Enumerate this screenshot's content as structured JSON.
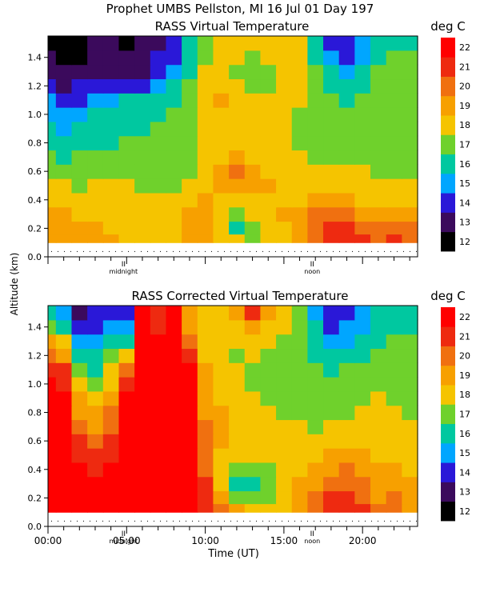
{
  "figure": {
    "title": "Prophet  UMBS Pellston, MI  16 Jul 01 Day 197",
    "shared_ylabel": "Altitude (km)",
    "shared_xlabel": "Time (UT)",
    "x_ticklabels": [
      "00:00",
      "05:00",
      "10:00",
      "15:00",
      "20:00"
    ],
    "marker_labels": [
      "midnight",
      "noon"
    ],
    "marker_glyph": "II"
  },
  "colorbar": {
    "unit_label": "deg C",
    "levels": [
      12,
      13,
      14,
      15,
      16,
      17,
      18,
      19,
      20,
      21,
      22
    ],
    "colors": [
      "#000000",
      "#3b0a5c",
      "#2a18d8",
      "#00a6ff",
      "#00c8a0",
      "#6fd12c",
      "#f5c400",
      "#f7a000",
      "#f07010",
      "#ee2a10",
      "#ff0000"
    ]
  },
  "chart_data": [
    {
      "type": "heatmap",
      "title": "RASS Virtual Temperature",
      "xlabel": "Time (UT)",
      "ylabel": "Altitude (km)",
      "zlabel": "deg C",
      "xlim": [
        0,
        23.5
      ],
      "ylim": [
        0,
        1.55
      ],
      "yticks": [
        0.0,
        0.2,
        0.4,
        0.6,
        0.8,
        1.0,
        1.2,
        1.4
      ],
      "yticklabels": [
        "0.0",
        "0.2",
        "0.4",
        "0.6",
        "0.8",
        "1.0",
        "1.2",
        "1.4"
      ],
      "markers": [
        {
          "x": 4.8,
          "label": "midnight"
        },
        {
          "x": 16.8,
          "label": "noon"
        }
      ],
      "x_hours": [
        0,
        1,
        2,
        3,
        4,
        5,
        6,
        7,
        8,
        9,
        10,
        11,
        12,
        13,
        14,
        15,
        16,
        17,
        18,
        19,
        20,
        21,
        22,
        23
      ],
      "y_km": [
        0.12,
        0.2,
        0.3,
        0.4,
        0.5,
        0.6,
        0.7,
        0.8,
        0.9,
        1.0,
        1.1,
        1.2,
        1.3,
        1.4,
        1.5
      ],
      "values": [
        [
          19.5,
          19.8,
          19.3,
          19.5,
          19.2,
          18.8,
          18.6,
          18.5,
          18.8,
          19.4,
          19.2,
          18.7,
          18.5,
          17.6,
          18.3,
          18.8,
          19.6,
          20.6,
          21.3,
          21.5,
          21.2,
          20.8,
          21.0,
          20.5
        ],
        [
          19.3,
          19.6,
          19.2,
          19.1,
          18.9,
          18.6,
          18.6,
          18.5,
          18.6,
          19.3,
          19.1,
          18.4,
          16.8,
          17.8,
          18.4,
          18.9,
          19.4,
          20.4,
          21.0,
          21.3,
          20.8,
          20.1,
          20.6,
          20.1
        ],
        [
          19.0,
          19.2,
          18.7,
          18.4,
          18.4,
          18.4,
          18.2,
          18.1,
          18.5,
          19.1,
          19.2,
          18.3,
          17.6,
          18.3,
          18.8,
          19.2,
          19.4,
          20.0,
          20.6,
          20.6,
          19.7,
          19.1,
          19.6,
          19.1
        ],
        [
          18.2,
          18.4,
          18.1,
          18.2,
          18.1,
          18.2,
          18.2,
          18.0,
          18.0,
          18.4,
          19.1,
          18.8,
          18.6,
          18.9,
          18.9,
          18.8,
          18.8,
          19.1,
          19.4,
          19.1,
          18.8,
          18.3,
          18.9,
          18.5
        ],
        [
          18.1,
          18.1,
          17.9,
          18.1,
          18.0,
          18.0,
          17.8,
          17.7,
          17.8,
          18.1,
          18.6,
          19.0,
          19.3,
          19.4,
          19.1,
          18.6,
          18.5,
          18.5,
          18.7,
          18.5,
          18.4,
          18.1,
          18.4,
          18.1
        ],
        [
          17.7,
          17.4,
          17.6,
          17.8,
          17.8,
          17.6,
          17.5,
          17.5,
          17.6,
          17.9,
          18.6,
          19.6,
          20.2,
          19.2,
          18.7,
          18.5,
          18.4,
          18.3,
          18.1,
          18.1,
          18.0,
          17.8,
          17.8,
          17.8
        ],
        [
          17.3,
          16.9,
          17.1,
          17.2,
          17.2,
          17.2,
          17.2,
          17.3,
          17.4,
          17.8,
          18.3,
          18.8,
          19.3,
          18.9,
          18.6,
          18.5,
          18.1,
          17.8,
          17.8,
          17.7,
          17.6,
          17.6,
          17.6,
          17.6
        ],
        [
          16.8,
          16.3,
          16.6,
          16.8,
          16.9,
          17.0,
          17.1,
          17.2,
          17.4,
          17.6,
          18.1,
          18.7,
          18.8,
          18.6,
          18.5,
          18.4,
          17.7,
          17.5,
          17.4,
          17.4,
          17.3,
          17.4,
          17.3,
          17.3
        ],
        [
          16.4,
          15.7,
          16.1,
          16.5,
          16.7,
          16.8,
          16.9,
          17.1,
          17.3,
          17.5,
          18.1,
          18.7,
          18.8,
          18.6,
          18.4,
          18.2,
          17.5,
          17.2,
          17.0,
          17.1,
          17.2,
          17.4,
          17.3,
          17.3
        ],
        [
          15.8,
          15.0,
          15.5,
          16.2,
          16.5,
          16.6,
          16.6,
          16.8,
          17.1,
          17.7,
          18.4,
          18.8,
          18.5,
          18.4,
          18.2,
          18.2,
          17.6,
          17.2,
          17.0,
          17.0,
          17.1,
          17.4,
          17.4,
          17.4
        ],
        [
          15.0,
          14.3,
          14.9,
          15.7,
          15.9,
          16.0,
          16.1,
          16.5,
          16.9,
          17.6,
          18.6,
          19.1,
          18.4,
          18.1,
          18.0,
          18.2,
          18.1,
          17.3,
          17.0,
          16.8,
          17.0,
          17.6,
          17.6,
          17.6
        ],
        [
          14.3,
          13.7,
          14.0,
          14.6,
          14.3,
          14.4,
          14.8,
          15.4,
          16.1,
          17.1,
          18.4,
          18.7,
          18.3,
          17.9,
          17.9,
          18.2,
          18.5,
          17.4,
          16.6,
          16.1,
          16.6,
          17.4,
          17.5,
          17.6
        ],
        [
          13.6,
          13.1,
          13.3,
          13.6,
          13.4,
          13.5,
          13.9,
          14.5,
          15.3,
          16.6,
          18.1,
          18.3,
          17.9,
          17.8,
          17.9,
          18.2,
          18.5,
          17.2,
          16.2,
          15.6,
          16.2,
          17.1,
          17.2,
          17.4
        ],
        [
          13.0,
          12.5,
          12.9,
          13.3,
          13.1,
          13.2,
          13.4,
          14.1,
          14.8,
          16.2,
          17.9,
          18.4,
          18.0,
          17.9,
          18.1,
          18.4,
          18.3,
          16.6,
          15.2,
          14.8,
          15.6,
          16.8,
          17.0,
          17.2
        ],
        [
          12.8,
          12.2,
          12.5,
          13.4,
          13.3,
          12.9,
          13.2,
          13.9,
          14.5,
          16.0,
          17.8,
          18.5,
          18.1,
          18.0,
          18.1,
          18.3,
          18.0,
          16.4,
          14.9,
          14.6,
          15.4,
          16.5,
          16.7,
          16.8
        ]
      ]
    },
    {
      "type": "heatmap",
      "title": "RASS Corrected Virtual Temperature",
      "xlabel": "Time (UT)",
      "ylabel": "Altitude (km)",
      "zlabel": "deg C",
      "xlim": [
        0,
        23.5
      ],
      "ylim": [
        0,
        1.55
      ],
      "yticks": [
        0.0,
        0.2,
        0.4,
        0.6,
        0.8,
        1.0,
        1.2,
        1.4
      ],
      "yticklabels": [
        "0.0",
        "0.2",
        "0.4",
        "0.6",
        "0.8",
        "1.0",
        "1.2",
        "1.4"
      ],
      "markers": [
        {
          "x": 4.8,
          "label": "midnight"
        },
        {
          "x": 16.8,
          "label": "noon"
        }
      ],
      "x_hours": [
        0,
        1,
        2,
        3,
        4,
        5,
        6,
        7,
        8,
        9,
        10,
        11,
        12,
        13,
        14,
        15,
        16,
        17,
        18,
        19,
        20,
        21,
        22,
        23
      ],
      "y_km": [
        0.12,
        0.2,
        0.3,
        0.4,
        0.5,
        0.6,
        0.7,
        0.8,
        0.9,
        1.0,
        1.1,
        1.2,
        1.3,
        1.4,
        1.5
      ],
      "values": [
        [
          23.0,
          23.0,
          23.0,
          22.5,
          23.0,
          23.0,
          23.0,
          23.0,
          23.0,
          23.0,
          21.4,
          20.2,
          19.6,
          18.5,
          18.7,
          18.9,
          19.4,
          20.3,
          21.4,
          21.8,
          21.0,
          20.2,
          20.2,
          19.8
        ],
        [
          23.0,
          23.0,
          23.0,
          22.5,
          23.0,
          23.0,
          23.0,
          23.0,
          23.0,
          23.0,
          21.2,
          19.7,
          17.5,
          17.0,
          17.8,
          18.8,
          19.2,
          20.0,
          21.0,
          21.2,
          20.7,
          19.9,
          20.0,
          19.6
        ],
        [
          23.0,
          23.0,
          22.8,
          22.2,
          22.8,
          23.0,
          23.0,
          23.0,
          23.0,
          23.0,
          21.0,
          18.8,
          16.8,
          16.8,
          17.6,
          18.6,
          19.0,
          19.6,
          20.5,
          20.8,
          20.2,
          19.6,
          19.5,
          19.3
        ],
        [
          23.0,
          23.0,
          22.5,
          21.8,
          22.4,
          23.0,
          23.0,
          23.0,
          23.0,
          23.0,
          20.8,
          18.3,
          17.1,
          17.3,
          17.9,
          18.5,
          18.6,
          19.2,
          19.8,
          20.0,
          19.6,
          19.1,
          19.0,
          18.9
        ],
        [
          23.0,
          22.8,
          21.9,
          21.1,
          21.8,
          23.0,
          23.0,
          23.0,
          23.0,
          23.0,
          20.6,
          18.6,
          18.0,
          18.2,
          18.4,
          18.5,
          18.5,
          18.7,
          19.0,
          19.1,
          19.0,
          18.7,
          18.6,
          18.5
        ],
        [
          23.0,
          22.6,
          21.2,
          20.4,
          21.2,
          23.0,
          23.0,
          23.0,
          23.0,
          23.0,
          20.4,
          19.0,
          18.5,
          18.4,
          18.4,
          18.4,
          18.3,
          18.4,
          18.5,
          18.6,
          18.6,
          18.4,
          18.3,
          18.2
        ],
        [
          23.0,
          22.4,
          20.5,
          19.7,
          20.6,
          23.0,
          23.0,
          23.0,
          23.0,
          23.0,
          20.1,
          19.2,
          18.7,
          18.4,
          18.3,
          18.2,
          18.0,
          17.9,
          18.0,
          18.1,
          18.2,
          18.2,
          18.1,
          18.0
        ],
        [
          23.0,
          22.3,
          19.8,
          19.0,
          20.0,
          23.0,
          23.0,
          23.0,
          23.0,
          23.0,
          19.8,
          19.0,
          18.6,
          18.3,
          18.1,
          17.9,
          17.6,
          17.5,
          17.6,
          17.8,
          18.0,
          18.1,
          18.0,
          17.9
        ],
        [
          23.0,
          22.1,
          19.1,
          18.3,
          19.4,
          22.5,
          23.0,
          23.0,
          23.0,
          23.0,
          19.6,
          18.8,
          18.4,
          18.1,
          17.9,
          17.6,
          17.3,
          17.2,
          17.3,
          17.6,
          17.8,
          18.0,
          17.9,
          17.8
        ],
        [
          22.6,
          21.8,
          18.4,
          17.6,
          18.8,
          21.5,
          23.0,
          23.0,
          23.0,
          23.0,
          19.3,
          18.6,
          18.2,
          17.9,
          17.7,
          17.4,
          17.2,
          17.0,
          17.1,
          17.4,
          17.6,
          17.9,
          17.8,
          17.6
        ],
        [
          21.8,
          21.0,
          17.6,
          16.8,
          18.0,
          20.0,
          23.0,
          23.0,
          23.0,
          22.6,
          19.0,
          18.4,
          18.0,
          17.8,
          17.6,
          17.4,
          17.3,
          17.0,
          16.8,
          17.0,
          17.3,
          17.6,
          17.6,
          17.5
        ],
        [
          20.6,
          19.8,
          16.6,
          16.0,
          17.2,
          18.2,
          23.0,
          22.8,
          23.0,
          21.6,
          18.7,
          18.2,
          17.9,
          18.0,
          17.8,
          17.6,
          17.5,
          16.8,
          16.2,
          16.4,
          16.9,
          17.3,
          17.4,
          17.3
        ],
        [
          19.0,
          18.2,
          15.4,
          15.2,
          16.2,
          16.6,
          23.0,
          22.4,
          23.0,
          20.4,
          18.3,
          18.0,
          18.1,
          18.6,
          18.3,
          17.9,
          17.6,
          16.4,
          15.4,
          15.6,
          16.3,
          16.9,
          17.1,
          17.0
        ],
        [
          17.6,
          16.6,
          14.3,
          14.6,
          15.3,
          15.2,
          22.6,
          21.8,
          23.0,
          19.6,
          18.1,
          18.0,
          18.6,
          19.8,
          18.9,
          18.2,
          17.6,
          16.0,
          14.8,
          15.0,
          15.8,
          16.5,
          16.8,
          16.7
        ],
        [
          16.4,
          15.6,
          13.8,
          14.2,
          14.7,
          14.4,
          22.2,
          21.4,
          23.0,
          19.0,
          18.0,
          18.1,
          19.2,
          21.0,
          19.4,
          18.4,
          17.5,
          15.8,
          14.5,
          14.7,
          15.5,
          16.2,
          16.5,
          16.4
        ]
      ]
    }
  ]
}
